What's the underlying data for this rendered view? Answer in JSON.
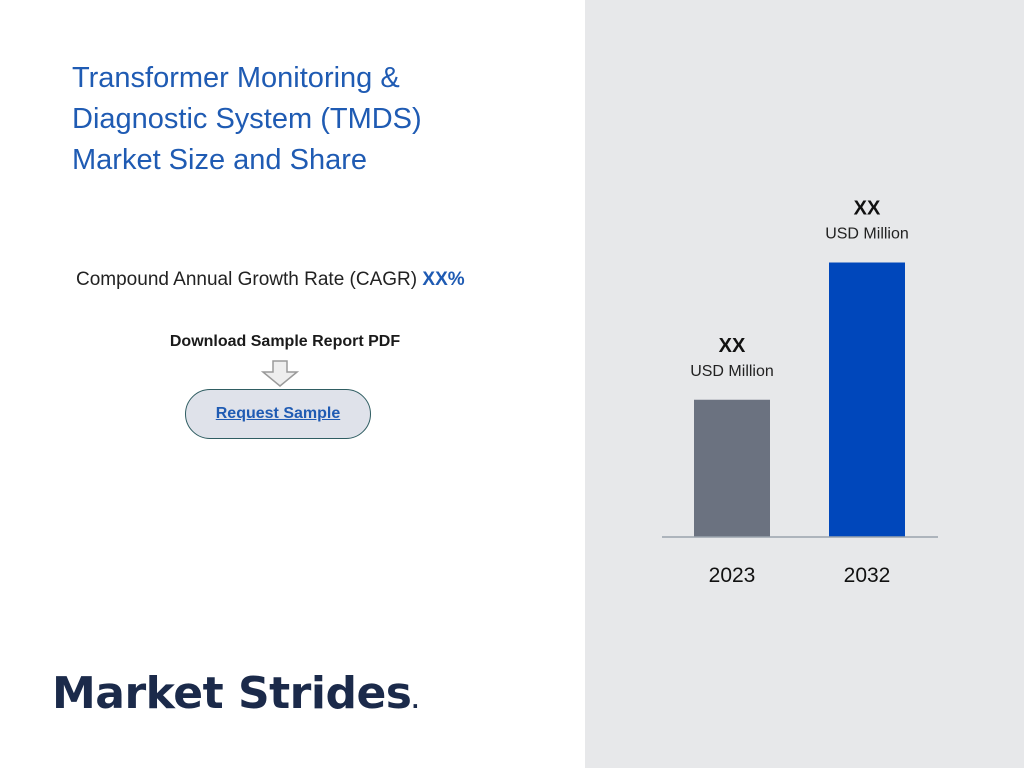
{
  "header": {
    "title": "Transformer Monitoring & Diagnostic System (TMDS) Market Size and Share"
  },
  "cagr": {
    "label": "Compound Annual Growth Rate (CAGR)",
    "value": "XX%"
  },
  "download": {
    "label": "Download Sample Report PDF",
    "button_label": "Request Sample",
    "icon": "down-arrow-icon"
  },
  "brand": {
    "logo_text": "Market Strides",
    "logo_dot": "."
  },
  "colors": {
    "title": "#1f5bb3",
    "bar_2023": "#6b7280",
    "bar_2032": "#0047bb",
    "right_panel_bg": "#e7e8ea"
  },
  "chart_data": {
    "type": "bar",
    "categories": [
      "2023",
      "2032"
    ],
    "values": [
      45,
      90
    ],
    "value_labels": [
      "XX",
      "XX"
    ],
    "unit_label": "USD Million",
    "colors": [
      "#6b7280",
      "#0047bb"
    ],
    "ylim": [
      0,
      100
    ],
    "grid": false
  }
}
